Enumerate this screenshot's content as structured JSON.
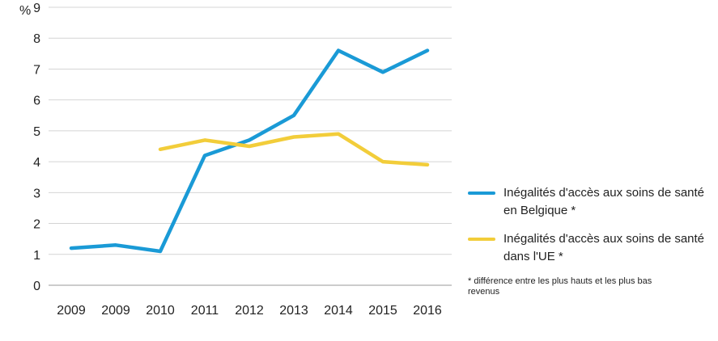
{
  "chart_data": {
    "type": "line",
    "y_unit_label": "%",
    "ylim": [
      0,
      9
    ],
    "y_ticks": [
      0,
      1,
      2,
      3,
      4,
      5,
      6,
      7,
      8,
      9
    ],
    "grid": "horizontal",
    "legend_position": "right",
    "categories": [
      "2009",
      "2009",
      "2010",
      "2011",
      "2012",
      "2013",
      "2014",
      "2015",
      "2016"
    ],
    "series": [
      {
        "name": "Inégalités d'accès aux soins de santé en Belgique *",
        "color": "#1a9ad6",
        "values": [
          1.2,
          1.3,
          1.1,
          4.2,
          4.7,
          5.5,
          7.6,
          6.9,
          7.6
        ]
      },
      {
        "name": "Inégalités d'accès aux soins de santé dans l'UE *",
        "color": "#f2cd3a",
        "values": [
          null,
          null,
          4.4,
          4.7,
          4.5,
          4.8,
          4.9,
          4.0,
          3.9
        ]
      }
    ],
    "footnote": "* différence entre les plus hauts et les plus bas revenus"
  }
}
